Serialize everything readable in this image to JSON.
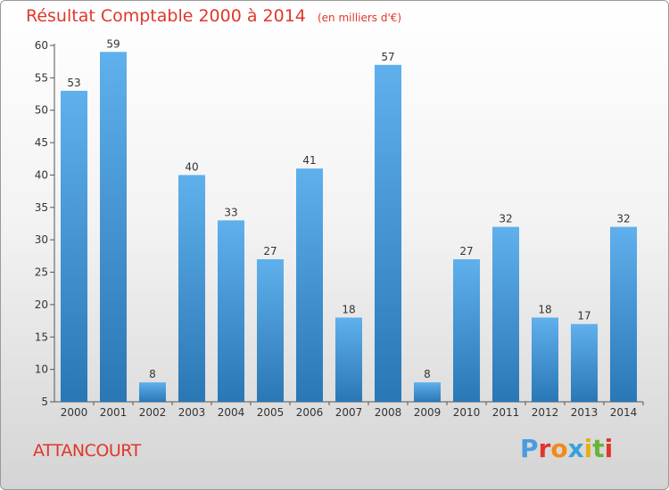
{
  "title": "Résultat Comptable 2000 à 2014",
  "unit_note": "(en milliers d'€)",
  "commune": "ATTANCOURT",
  "logo": {
    "text": "Proxiti",
    "colors": [
      "#4a9be0",
      "#e0372a",
      "#f08a1c",
      "#3aa0d8",
      "#e2b117",
      "#66b53a",
      "#e0372a"
    ]
  },
  "colors": {
    "bar_light": "#5fb0ec",
    "bar_dark": "#2a77b5",
    "title": "#e0372a"
  },
  "chart_data": {
    "type": "bar",
    "categories": [
      "2000",
      "2001",
      "2002",
      "2003",
      "2004",
      "2005",
      "2006",
      "2007",
      "2008",
      "2009",
      "2010",
      "2011",
      "2012",
      "2013",
      "2014"
    ],
    "values": [
      53,
      59,
      8,
      40,
      33,
      27,
      41,
      18,
      57,
      8,
      27,
      32,
      18,
      17,
      32
    ],
    "ylim": [
      5,
      60
    ],
    "yticks": [
      5,
      10,
      15,
      20,
      25,
      30,
      35,
      40,
      45,
      50,
      55,
      60
    ],
    "grid": false,
    "title": "Résultat Comptable 2000 à 2014",
    "xlabel": "",
    "ylabel": ""
  }
}
